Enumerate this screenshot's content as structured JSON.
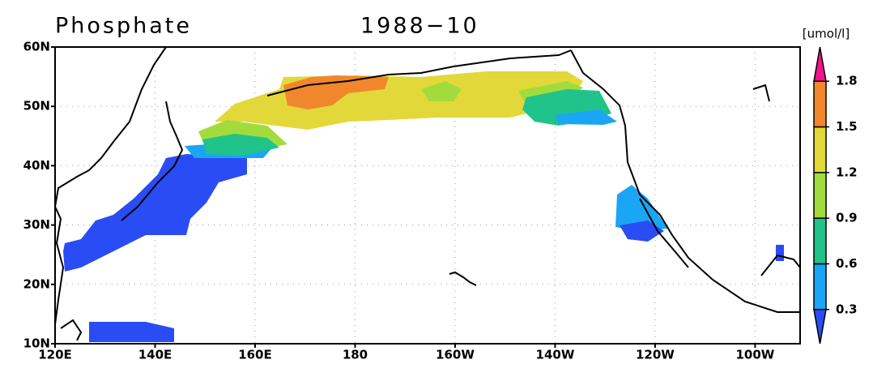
{
  "title": "Phosphate",
  "date": "1988−10",
  "units": "[umol/l]",
  "map": {
    "lonlim": [
      120,
      269
    ],
    "latlim": [
      10,
      60
    ],
    "lon_ticks": [
      {
        "value": 120,
        "label": "120E"
      },
      {
        "value": 140,
        "label": "140E"
      },
      {
        "value": 160,
        "label": "160E"
      },
      180,
      {
        "value": 200,
        "label": "160W"
      },
      {
        "value": 220,
        "label": "140W"
      },
      {
        "value": 240,
        "label": "120W"
      },
      {
        "value": 260,
        "label": "100W"
      }
    ],
    "lat_ticks": [
      {
        "value": 10,
        "label": "10N"
      },
      {
        "value": 20,
        "label": "20N"
      },
      {
        "value": 30,
        "label": "30N"
      },
      {
        "value": 40,
        "label": "40N"
      },
      {
        "value": 50,
        "label": "50N"
      },
      {
        "value": 60,
        "label": "60N"
      }
    ]
  },
  "colorbar": {
    "levels": [
      0.3,
      0.6,
      0.9,
      1.2,
      1.5,
      1.8
    ],
    "colors": [
      "#2a4cf5",
      "#1aa6f5",
      "#20c38a",
      "#a2dc3c",
      "#e2d83a",
      "#f0872c",
      "#f0148c"
    ]
  }
}
